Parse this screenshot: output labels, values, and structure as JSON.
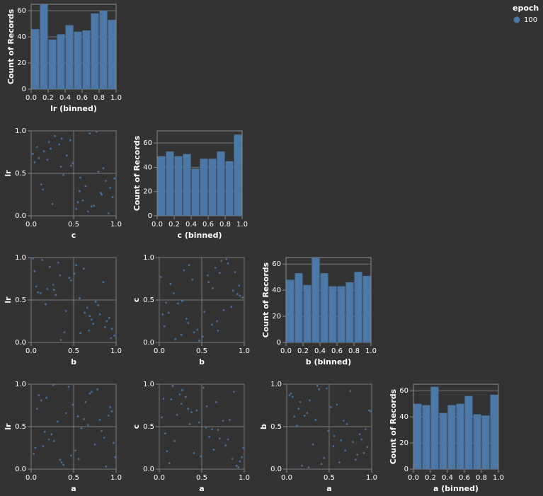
{
  "chart_data": [
    {
      "type": "histogram",
      "x_label": "lr (binned)",
      "y_label": "Count of Records",
      "bins": [
        0,
        0.1,
        0.2,
        0.3,
        0.4,
        0.5,
        0.6,
        0.7,
        0.8,
        0.9,
        1
      ],
      "values": [
        46,
        65,
        38,
        42,
        49,
        44,
        45,
        58,
        60,
        53
      ],
      "color": "#4c78a8",
      "xlim": [
        0,
        1
      ],
      "ylim": [
        0,
        65
      ],
      "xticks": [
        {
          "value": 0,
          "label": "0.0"
        },
        0.2,
        0.4,
        0.6,
        0.8,
        {
          "value": 1,
          "label": "1.0"
        }
      ],
      "yticks": [
        0,
        20,
        40,
        60
      ]
    },
    {
      "type": "scatter",
      "x_label": "c",
      "y_label": "lr",
      "color": "#4c78a8",
      "xlim": [
        0,
        1
      ],
      "ylim": [
        0,
        1
      ],
      "xticks": [
        {
          "value": 0,
          "label": "0.0"
        },
        0.5,
        {
          "value": 1,
          "label": "1.0"
        }
      ],
      "yticks": [
        {
          "value": 0,
          "label": "0.0"
        },
        0.5,
        {
          "value": 1,
          "label": "1.0"
        }
      ],
      "x": [
        0.74,
        0.21,
        0.58,
        0.93,
        0.36,
        0.67,
        0.09,
        0.82,
        0.47,
        0.15,
        0.61,
        0.28,
        0.88,
        0.04,
        0.53,
        0.79,
        0.33,
        0.96,
        0.12,
        0.42,
        0.69,
        0.25,
        0.85,
        0.57,
        0.07,
        0.38,
        0.91,
        0.19,
        0.64,
        0.46,
        0.83,
        0.02,
        0.71,
        0.35,
        0.98,
        0.23,
        0.55,
        0.77,
        0.14,
        0.49
      ],
      "y": [
        0.12,
        0.87,
        0.45,
        0.33,
        0.91,
        0.05,
        0.68,
        0.27,
        0.59,
        0.76,
        0.18,
        0.94,
        0.41,
        0.63,
        0.08,
        0.52,
        0.84,
        0.22,
        0.37,
        0.71,
        0.97,
        0.14,
        0.56,
        0.29,
        0.81,
        0.48,
        0.03,
        0.66,
        0.35,
        0.89,
        0.25,
        0.73,
        0.11,
        0.58,
        0.44,
        0.79,
        0.16,
        0.99,
        0.31,
        0.62
      ]
    },
    {
      "type": "histogram",
      "x_label": "c (binned)",
      "y_label": "Count of Records",
      "bins": [
        0,
        0.1,
        0.2,
        0.3,
        0.4,
        0.5,
        0.6,
        0.7,
        0.8,
        0.9,
        1
      ],
      "values": [
        49,
        53,
        49,
        51,
        39,
        47,
        47,
        53,
        45,
        67
      ],
      "color": "#4c78a8",
      "xlim": [
        0,
        1
      ],
      "ylim": [
        0,
        70
      ],
      "xticks": [
        {
          "value": 0,
          "label": "0.0"
        },
        0.2,
        0.4,
        0.6,
        0.8,
        {
          "value": 1,
          "label": "1.0"
        }
      ],
      "yticks": [
        0,
        20,
        40,
        60
      ]
    },
    {
      "type": "scatter",
      "x_label": "b",
      "y_label": "lr",
      "color": "#4c78a8",
      "xlim": [
        0,
        1
      ],
      "ylim": [
        0,
        1
      ],
      "xticks": [
        {
          "value": 0,
          "label": "0.0"
        },
        0.5,
        {
          "value": 1,
          "label": "1.0"
        }
      ],
      "yticks": [
        {
          "value": 0,
          "label": "0.0"
        },
        0.5,
        {
          "value": 1,
          "label": "1.0"
        }
      ],
      "x": [
        0.39,
        0.62,
        0.17,
        0.81,
        0.53,
        0.94,
        0.26,
        0.71,
        0.08,
        0.45,
        0.87,
        0.32,
        0.66,
        0.19,
        0.98,
        0.57,
        0.04,
        0.73,
        0.41,
        0.85,
        0.13,
        0.68,
        0.29,
        0.92,
        0.51,
        0.76,
        0.35,
        0.06,
        0.63,
        0.22,
        0.89,
        0.47,
        0.58,
        0.11,
        0.79,
        0.34,
        0.95,
        0.02,
        0.69,
        0.27
      ],
      "y": [
        0.12,
        0.87,
        0.45,
        0.33,
        0.91,
        0.05,
        0.68,
        0.27,
        0.59,
        0.76,
        0.18,
        0.94,
        0.41,
        0.63,
        0.08,
        0.52,
        0.84,
        0.22,
        0.37,
        0.71,
        0.97,
        0.14,
        0.56,
        0.29,
        0.81,
        0.48,
        0.03,
        0.66,
        0.35,
        0.89,
        0.25,
        0.73,
        0.11,
        0.58,
        0.44,
        0.79,
        0.16,
        0.99,
        0.31,
        0.62
      ]
    },
    {
      "type": "scatter",
      "x_label": "b",
      "y_label": "c",
      "color": "#4c78a8",
      "xlim": [
        0,
        1
      ],
      "ylim": [
        0,
        1
      ],
      "xticks": [
        {
          "value": 0,
          "label": "0.0"
        },
        0.5,
        {
          "value": 1,
          "label": "1.0"
        }
      ],
      "yticks": [
        {
          "value": 0,
          "label": "0.0"
        },
        0.5,
        {
          "value": 1,
          "label": "1.0"
        }
      ],
      "x": [
        0.39,
        0.62,
        0.17,
        0.81,
        0.53,
        0.94,
        0.26,
        0.71,
        0.08,
        0.45,
        0.87,
        0.32,
        0.66,
        0.19,
        0.98,
        0.57,
        0.04,
        0.73,
        0.41,
        0.85,
        0.13,
        0.68,
        0.29,
        0.92,
        0.51,
        0.76,
        0.35,
        0.06,
        0.63,
        0.22,
        0.89,
        0.47,
        0.58,
        0.11,
        0.79,
        0.34,
        0.95,
        0.02,
        0.69,
        0.27
      ],
      "y": [
        0.74,
        0.21,
        0.58,
        0.93,
        0.36,
        0.67,
        0.09,
        0.82,
        0.47,
        0.15,
        0.61,
        0.28,
        0.88,
        0.04,
        0.53,
        0.79,
        0.33,
        0.96,
        0.12,
        0.42,
        0.69,
        0.25,
        0.85,
        0.57,
        0.07,
        0.38,
        0.91,
        0.19,
        0.64,
        0.46,
        0.83,
        0.02,
        0.71,
        0.35,
        0.98,
        0.23,
        0.55,
        0.77,
        0.14,
        0.49
      ]
    },
    {
      "type": "histogram",
      "x_label": "b (binned)",
      "y_label": "Count of Records",
      "bins": [
        0,
        0.1,
        0.2,
        0.3,
        0.4,
        0.5,
        0.6,
        0.7,
        0.8,
        0.9,
        1
      ],
      "values": [
        48,
        53,
        44,
        65,
        53,
        43,
        43,
        46,
        54,
        51
      ],
      "color": "#4c78a8",
      "xlim": [
        0,
        1
      ],
      "ylim": [
        0,
        65
      ],
      "xticks": [
        {
          "value": 0,
          "label": "0.0"
        },
        0.2,
        0.4,
        0.6,
        0.8,
        {
          "value": 1,
          "label": "1.0"
        }
      ],
      "yticks": [
        0,
        20,
        40,
        60
      ]
    },
    {
      "type": "scatter",
      "x_label": "a",
      "y_label": "lr",
      "color": "#4c78a8",
      "xlim": [
        0,
        1
      ],
      "ylim": [
        0,
        1
      ],
      "xticks": [
        {
          "value": 0,
          "label": "0.0"
        },
        0.5,
        {
          "value": 1,
          "label": "1.0"
        }
      ],
      "yticks": [
        {
          "value": 0,
          "label": "0.0"
        },
        0.5,
        {
          "value": 1,
          "label": "1.0"
        }
      ],
      "x": [
        0.56,
        0.09,
        0.83,
        0.27,
        0.71,
        0.38,
        0.95,
        0.14,
        0.62,
        0.49,
        0.03,
        0.78,
        0.24,
        0.91,
        0.36,
        0.67,
        0.18,
        0.52,
        0.86,
        0.07,
        0.44,
        0.99,
        0.31,
        0.75,
        0.12,
        0.59,
        0.88,
        0.41,
        0.21,
        0.69,
        0.05,
        0.93,
        0.34,
        0.81,
        0.16,
        0.64,
        0.47,
        0.26,
        0.97,
        0.55
      ],
      "y": [
        0.12,
        0.87,
        0.45,
        0.33,
        0.91,
        0.05,
        0.68,
        0.27,
        0.59,
        0.76,
        0.18,
        0.94,
        0.41,
        0.63,
        0.08,
        0.52,
        0.84,
        0.22,
        0.37,
        0.71,
        0.97,
        0.14,
        0.56,
        0.29,
        0.81,
        0.48,
        0.03,
        0.66,
        0.35,
        0.89,
        0.25,
        0.73,
        0.11,
        0.58,
        0.44,
        0.79,
        0.16,
        0.99,
        0.31,
        0.62
      ]
    },
    {
      "type": "scatter",
      "x_label": "a",
      "y_label": "c",
      "color": "#4c78a8",
      "xlim": [
        0,
        1
      ],
      "ylim": [
        0,
        1
      ],
      "xticks": [
        {
          "value": 0,
          "label": "0.0"
        },
        0.5,
        {
          "value": 1,
          "label": "1.0"
        }
      ],
      "yticks": [
        {
          "value": 0,
          "label": "0.0"
        },
        0.5,
        {
          "value": 1,
          "label": "1.0"
        }
      ],
      "x": [
        0.56,
        0.09,
        0.83,
        0.27,
        0.71,
        0.38,
        0.95,
        0.14,
        0.62,
        0.49,
        0.03,
        0.78,
        0.24,
        0.91,
        0.36,
        0.67,
        0.18,
        0.52,
        0.86,
        0.07,
        0.44,
        0.99,
        0.31,
        0.75,
        0.12,
        0.59,
        0.88,
        0.41,
        0.21,
        0.69,
        0.05,
        0.93,
        0.34,
        0.81,
        0.16,
        0.64,
        0.47,
        0.26,
        0.97,
        0.55
      ],
      "y": [
        0.74,
        0.21,
        0.58,
        0.93,
        0.36,
        0.67,
        0.09,
        0.82,
        0.47,
        0.15,
        0.61,
        0.28,
        0.88,
        0.04,
        0.53,
        0.79,
        0.33,
        0.96,
        0.12,
        0.42,
        0.69,
        0.25,
        0.85,
        0.57,
        0.07,
        0.38,
        0.91,
        0.19,
        0.64,
        0.46,
        0.83,
        0.02,
        0.71,
        0.35,
        0.98,
        0.23,
        0.55,
        0.77,
        0.14,
        0.49
      ]
    },
    {
      "type": "scatter",
      "x_label": "a",
      "y_label": "b",
      "color": "#4c78a8",
      "xlim": [
        0,
        1
      ],
      "ylim": [
        0,
        1
      ],
      "xticks": [
        {
          "value": 0,
          "label": "0.0"
        },
        0.5,
        {
          "value": 1,
          "label": "1.0"
        }
      ],
      "yticks": [
        {
          "value": 0,
          "label": "0.0"
        },
        0.5,
        {
          "value": 1,
          "label": "1.0"
        }
      ],
      "x": [
        0.56,
        0.09,
        0.83,
        0.27,
        0.71,
        0.38,
        0.95,
        0.14,
        0.62,
        0.49,
        0.03,
        0.78,
        0.24,
        0.91,
        0.36,
        0.67,
        0.18,
        0.52,
        0.86,
        0.07,
        0.44,
        0.99,
        0.31,
        0.75,
        0.12,
        0.59,
        0.88,
        0.41,
        0.21,
        0.69,
        0.05,
        0.93,
        0.34,
        0.81,
        0.16,
        0.64,
        0.47,
        0.26,
        0.97,
        0.55
      ],
      "y": [
        0.39,
        0.62,
        0.17,
        0.81,
        0.53,
        0.94,
        0.26,
        0.71,
        0.08,
        0.45,
        0.87,
        0.32,
        0.66,
        0.19,
        0.98,
        0.57,
        0.04,
        0.73,
        0.41,
        0.85,
        0.13,
        0.68,
        0.29,
        0.92,
        0.51,
        0.76,
        0.35,
        0.06,
        0.63,
        0.22,
        0.89,
        0.47,
        0.58,
        0.11,
        0.79,
        0.34,
        0.95,
        0.02,
        0.69,
        0.27
      ]
    },
    {
      "type": "histogram",
      "x_label": "a (binned)",
      "y_label": "Count of Records",
      "bins": [
        0,
        0.1,
        0.2,
        0.3,
        0.4,
        0.5,
        0.6,
        0.7,
        0.8,
        0.9,
        1
      ],
      "values": [
        50,
        49,
        63,
        43,
        49,
        50,
        56,
        42,
        41,
        57
      ],
      "color": "#4c78a8",
      "xlim": [
        0,
        1
      ],
      "ylim": [
        0,
        65
      ],
      "xticks": [
        {
          "value": 0,
          "label": "0.0"
        },
        0.2,
        0.4,
        0.6,
        0.8,
        {
          "value": 1,
          "label": "1.0"
        }
      ],
      "yticks": [
        0,
        20,
        40,
        60
      ]
    }
  ],
  "legend": {
    "title": "epoch",
    "items": [
      {
        "name": "100",
        "color": "#4c78a8"
      }
    ]
  }
}
